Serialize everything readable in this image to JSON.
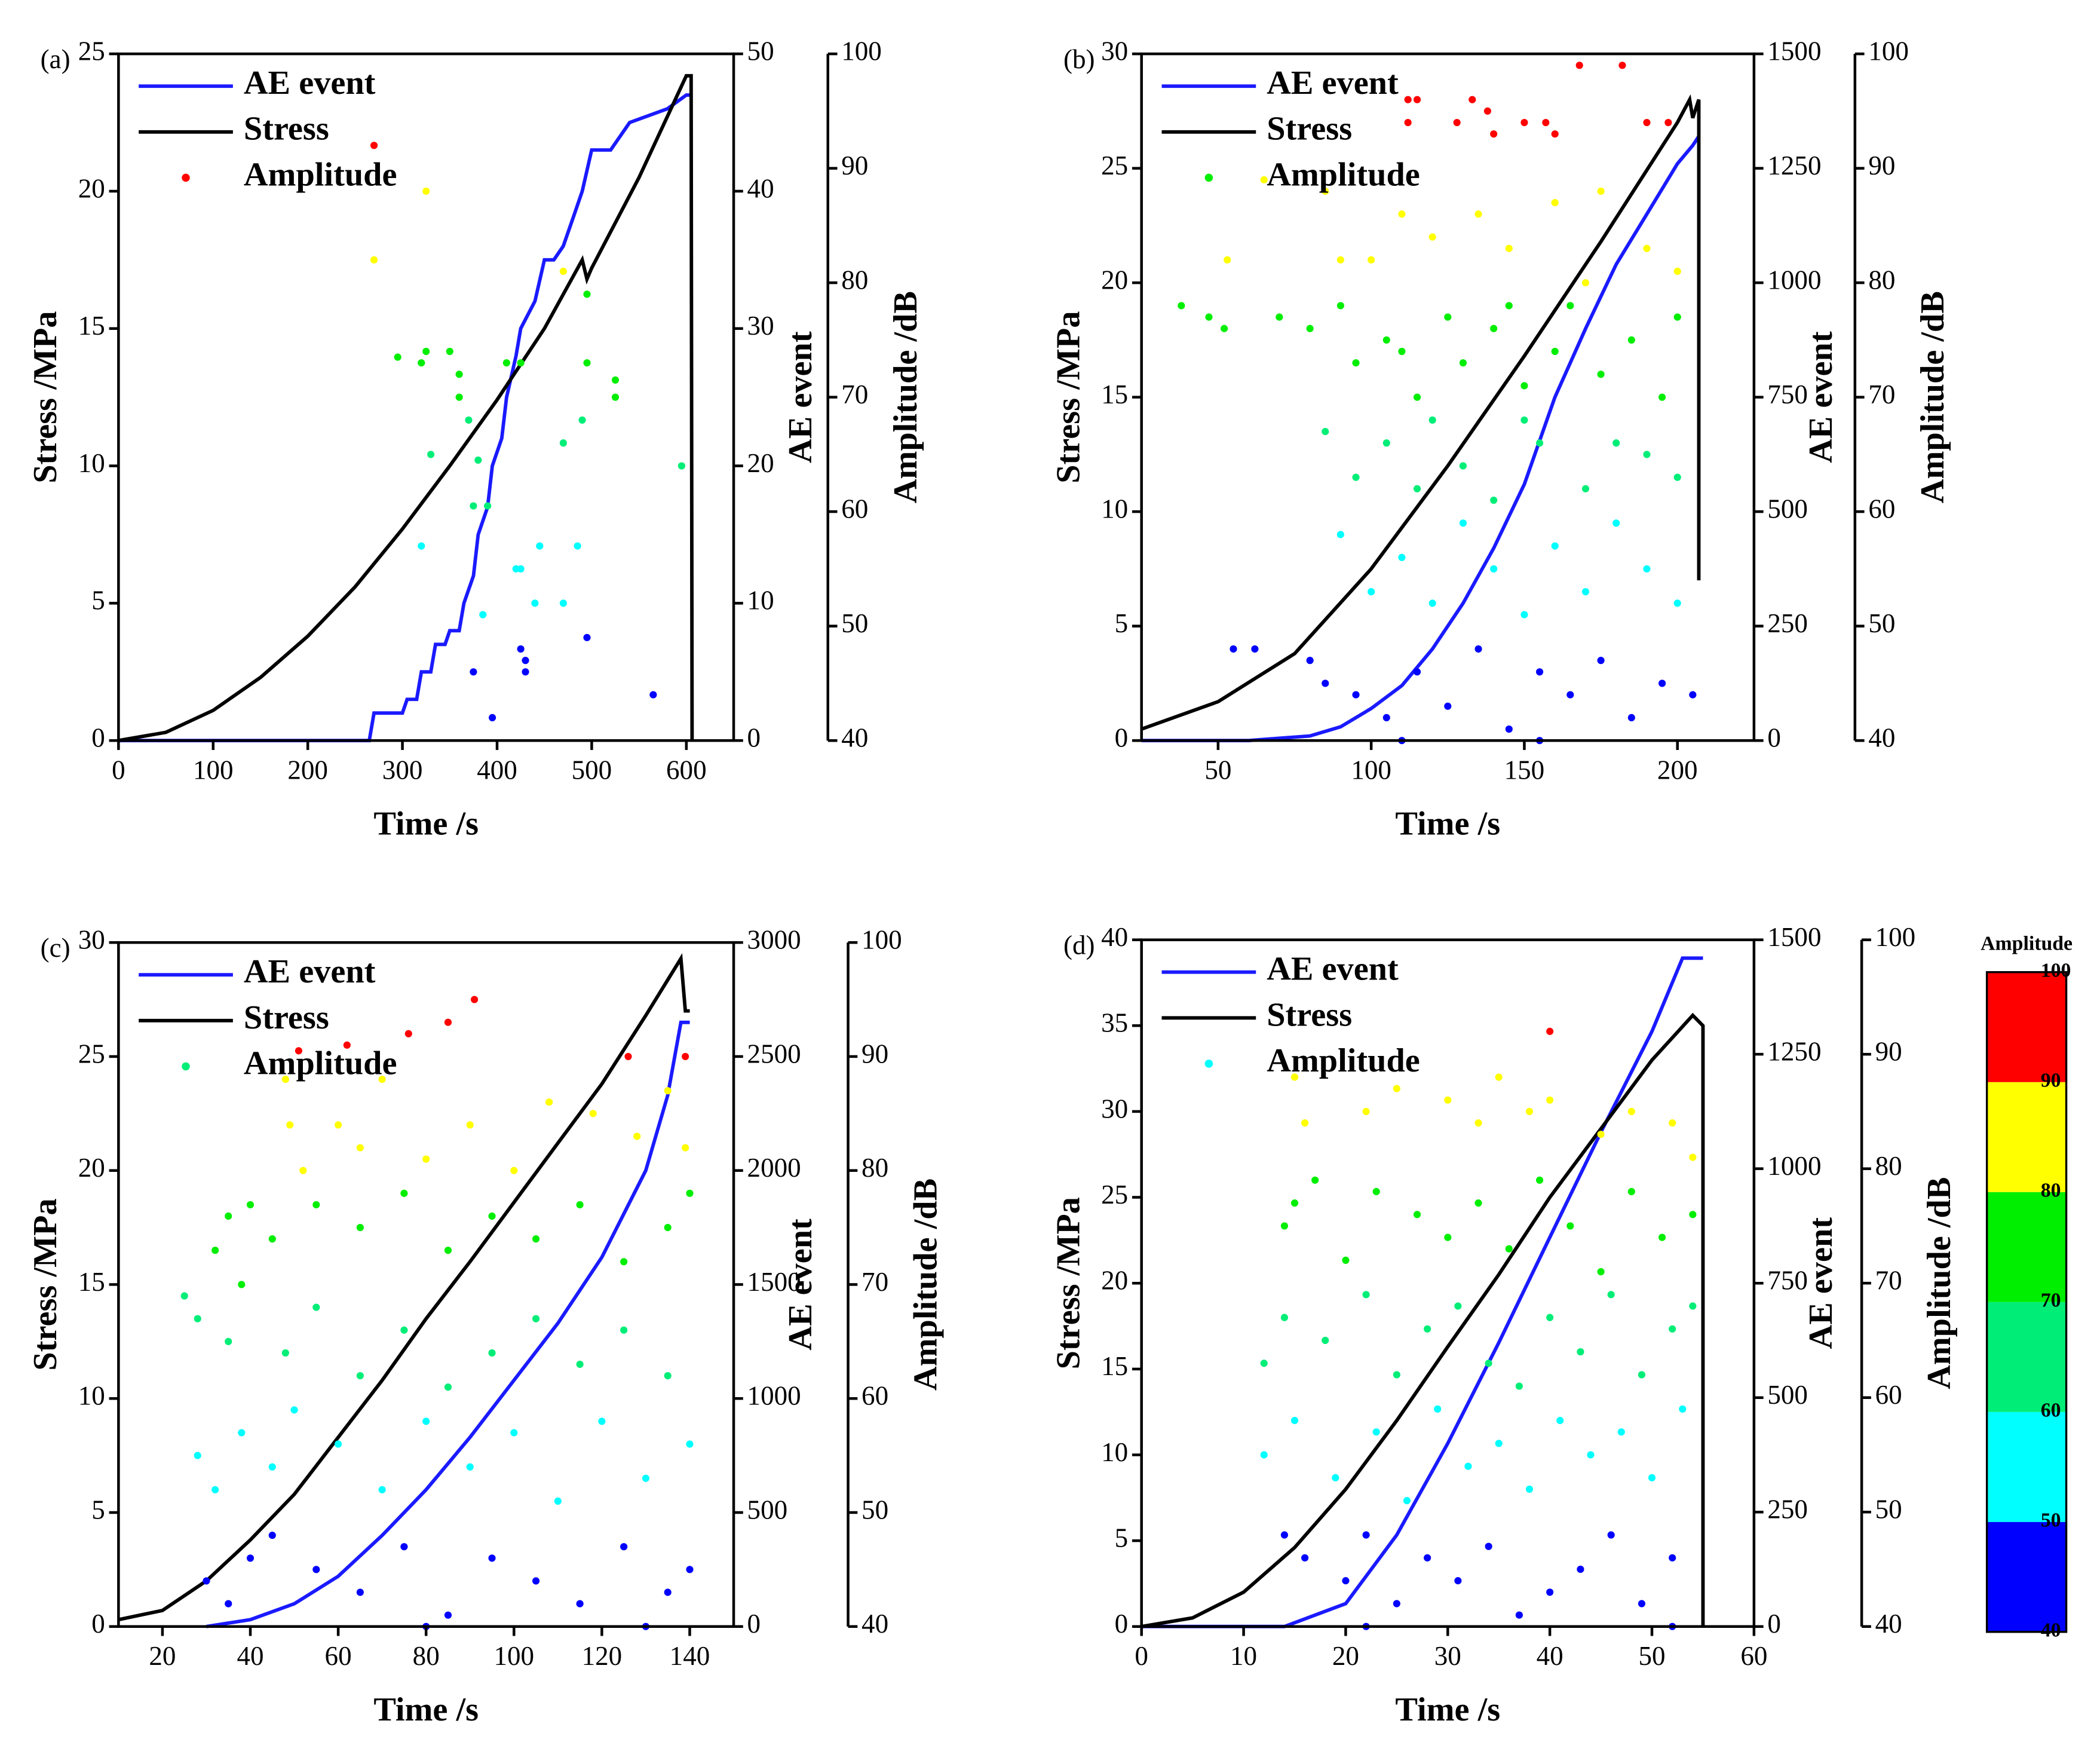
{
  "chart_data": [
    {
      "type": "line",
      "label": "(a)",
      "xlabel": "Time /s",
      "ylabel": "Stress /MPa",
      "y2label": "AE event",
      "y3label": "Amplitude /dB",
      "xlim": [
        0,
        650
      ],
      "xticks": [
        0,
        100,
        200,
        300,
        400,
        500,
        600
      ],
      "ylim": [
        0,
        25
      ],
      "yticks": [
        0,
        5,
        10,
        15,
        20,
        25
      ],
      "y2lim": [
        0,
        50
      ],
      "y2ticks": [
        0,
        10,
        20,
        30,
        40,
        50
      ],
      "y3lim": [
        40,
        100
      ],
      "y3ticks": [
        40,
        50,
        60,
        70,
        80,
        90,
        100
      ],
      "series": [
        {
          "name": "AE event",
          "color": "#1a1aff",
          "axis": "y2",
          "x": [
            0,
            265,
            270,
            300,
            305,
            315,
            320,
            330,
            335,
            345,
            350,
            360,
            365,
            375,
            380,
            390,
            395,
            405,
            410,
            420,
            425,
            440,
            450,
            460,
            470,
            480,
            490,
            500,
            520,
            540,
            580,
            600,
            605
          ],
          "values": [
            0,
            0,
            2,
            2,
            3,
            3,
            5,
            5,
            7,
            7,
            8,
            8,
            10,
            12,
            15,
            17,
            20,
            22,
            25,
            28,
            30,
            32,
            35,
            35,
            36,
            38,
            40,
            43,
            43,
            45,
            46,
            47,
            47
          ]
        },
        {
          "name": "Stress",
          "color": "#000000",
          "x": [
            0,
            50,
            100,
            150,
            200,
            250,
            300,
            350,
            400,
            450,
            490,
            495,
            500,
            550,
            600,
            605,
            606
          ],
          "values": [
            0,
            0.3,
            1.1,
            2.3,
            3.8,
            5.6,
            7.7,
            10,
            12.4,
            15,
            17.5,
            16.8,
            17.2,
            20.5,
            24.2,
            24.2,
            0
          ]
        },
        {
          "name": "Amplitude",
          "type": "scatter",
          "color": "#ff0000",
          "axis": "y3",
          "x": [
            270,
            325,
            270,
            470,
            495,
            295,
            320,
            325,
            350,
            360,
            360,
            370,
            410,
            425,
            495,
            525,
            525,
            330,
            380,
            390,
            470,
            595,
            490,
            320,
            375,
            420,
            425,
            445,
            485,
            440,
            470,
            385,
            375,
            425,
            430,
            430,
            495,
            395,
            565
          ],
          "values": [
            92,
            88,
            82,
            81,
            79,
            73.5,
            73,
            74,
            74,
            72,
            70,
            68,
            73,
            73,
            73,
            70,
            71.5,
            65,
            64.5,
            60.5,
            66,
            64,
            68,
            57,
            60.5,
            55,
            55,
            57,
            57,
            52,
            52,
            51,
            46,
            48,
            47,
            46,
            49,
            42,
            44
          ]
        }
      ]
    },
    {
      "type": "line",
      "label": "(b)",
      "xlabel": "Time /s",
      "ylabel": "Stress /MPa",
      "y2label": "AE event",
      "y3label": "Amplitude /dB",
      "xlim": [
        25,
        225
      ],
      "xticks": [
        50,
        100,
        150,
        200
      ],
      "ylim": [
        0,
        30
      ],
      "yticks": [
        0,
        5,
        10,
        15,
        20,
        25,
        30
      ],
      "y2lim": [
        0,
        1500
      ],
      "y2ticks": [
        0,
        250,
        500,
        750,
        1000,
        1250,
        1500
      ],
      "y3lim": [
        40,
        100
      ],
      "y3ticks": [
        40,
        50,
        60,
        70,
        80,
        90,
        100
      ],
      "series": [
        {
          "name": "AE event",
          "color": "#1a1aff",
          "axis": "y2",
          "x": [
            25,
            60,
            80,
            90,
            100,
            110,
            120,
            130,
            140,
            150,
            160,
            170,
            180,
            190,
            200,
            205,
            207
          ],
          "values": [
            0,
            0,
            10,
            30,
            70,
            120,
            200,
            300,
            420,
            560,
            750,
            900,
            1040,
            1150,
            1260,
            1300,
            1320
          ]
        },
        {
          "name": "Stress",
          "color": "#000000",
          "x": [
            25,
            50,
            75,
            100,
            125,
            150,
            175,
            200,
            204,
            205,
            207,
            207
          ],
          "values": [
            0.5,
            1.7,
            3.8,
            7.5,
            12,
            16.8,
            21.8,
            27,
            28,
            27.2,
            28,
            7
          ]
        },
        {
          "name": "Amplitude",
          "type": "scatter",
          "color": "#00ee00",
          "axis": "y3",
          "x": [
            112,
            115,
            128,
            133,
            138,
            140,
            150,
            157,
            160,
            168,
            182,
            190,
            197,
            112,
            38,
            47,
            52,
            70,
            53,
            65,
            85,
            90,
            110,
            120,
            135,
            145,
            160,
            175,
            190,
            200,
            100,
            170,
            80,
            90,
            95,
            105,
            115,
            125,
            130,
            140,
            150,
            160,
            165,
            175,
            185,
            195,
            200,
            110,
            145,
            120,
            155,
            180,
            85,
            95,
            105,
            115,
            130,
            140,
            150,
            170,
            190,
            200,
            90,
            100,
            110,
            120,
            130,
            140,
            150,
            160,
            170,
            180,
            190,
            200,
            80,
            85,
            95,
            105,
            115,
            125,
            135,
            145,
            155,
            165,
            175,
            185,
            195,
            205,
            55,
            62,
            110,
            155
          ],
          "values": [
            96,
            96,
            94,
            96,
            95,
            93,
            94,
            94,
            93,
            99,
            99,
            94,
            94,
            94,
            78,
            77,
            76,
            77,
            82,
            89,
            88,
            82,
            86,
            84,
            86,
            83,
            87,
            88,
            83,
            81,
            82,
            80,
            76,
            78,
            73,
            75,
            70,
            77,
            73,
            76,
            71,
            74,
            78,
            72,
            75,
            70,
            77,
            74,
            78,
            68,
            66,
            66,
            67,
            63,
            66,
            62,
            64,
            61,
            68,
            62,
            65,
            63,
            58,
            53,
            56,
            52,
            59,
            55,
            51,
            57,
            53,
            59,
            55,
            52,
            47,
            45,
            44,
            42,
            46,
            43,
            48,
            41,
            46,
            44,
            47,
            42,
            45,
            44,
            48,
            48,
            40,
            40
          ]
        }
      ]
    },
    {
      "type": "line",
      "label": "(c)",
      "xlabel": "Time /s",
      "ylabel": "Stress /MPa",
      "y2label": "AE event",
      "y3label": "Amplitude /dB",
      "xlim": [
        10,
        150
      ],
      "xticks": [
        20,
        40,
        60,
        80,
        100,
        120,
        140
      ],
      "ylim": [
        0,
        30
      ],
      "yticks": [
        0,
        5,
        10,
        15,
        20,
        25,
        30
      ],
      "y2lim": [
        0,
        3000
      ],
      "y2ticks": [
        0,
        500,
        1000,
        1500,
        2000,
        2500,
        3000
      ],
      "y3lim": [
        40,
        100
      ],
      "y3ticks": [
        40,
        50,
        60,
        70,
        80,
        90,
        100
      ],
      "series": [
        {
          "name": "AE event",
          "color": "#1a1aff",
          "axis": "y2",
          "x": [
            30,
            40,
            50,
            60,
            70,
            80,
            90,
            100,
            110,
            120,
            130,
            135,
            138,
            140
          ],
          "values": [
            0,
            30,
            100,
            220,
            400,
            600,
            830,
            1080,
            1330,
            1620,
            2000,
            2330,
            2650,
            2650
          ]
        },
        {
          "name": "Stress",
          "color": "#000000",
          "x": [
            10,
            20,
            30,
            40,
            50,
            60,
            70,
            80,
            90,
            100,
            110,
            120,
            130,
            138,
            139,
            140
          ],
          "values": [
            0.3,
            0.7,
            2,
            3.8,
            5.8,
            8.3,
            10.8,
            13.5,
            16,
            18.6,
            21.2,
            23.8,
            26.8,
            29.3,
            27,
            27
          ]
        },
        {
          "name": "Amplitude",
          "type": "scatter",
          "color": "#00ee77",
          "axis": "y3",
          "x": [
            51,
            62,
            76,
            85,
            91,
            126,
            139,
            48,
            49,
            52,
            60,
            65,
            70,
            80,
            90,
            100,
            108,
            118,
            128,
            135,
            139,
            25,
            32,
            35,
            40,
            45,
            55,
            65,
            75,
            85,
            95,
            105,
            115,
            125,
            135,
            140,
            38,
            28,
            35,
            48,
            55,
            65,
            75,
            85,
            95,
            105,
            115,
            125,
            135,
            28,
            32,
            38,
            45,
            50,
            60,
            70,
            80,
            90,
            100,
            110,
            120,
            130,
            140,
            30,
            35,
            40,
            45,
            55,
            65,
            75,
            85,
            95,
            105,
            115,
            125,
            135,
            140,
            80,
            130
          ],
          "values": [
            90.5,
            91,
            92,
            93,
            95,
            90,
            90,
            88,
            84,
            80,
            84,
            82,
            88,
            81,
            84,
            80,
            86,
            85,
            83,
            87,
            82,
            69,
            73,
            76,
            77,
            74,
            77,
            75,
            78,
            73,
            76,
            74,
            77,
            72,
            75,
            78,
            70,
            67,
            65,
            64,
            68,
            62,
            66,
            61,
            64,
            67,
            63,
            66,
            62,
            55,
            52,
            57,
            54,
            59,
            56,
            52,
            58,
            54,
            57,
            51,
            58,
            53,
            56,
            44,
            42,
            46,
            48,
            45,
            43,
            47,
            41,
            46,
            44,
            42,
            47,
            43,
            45,
            40,
            40
          ]
        }
      ]
    },
    {
      "type": "line",
      "label": "(d)",
      "xlabel": "Time /s",
      "ylabel": "Stress /MPa",
      "y2label": "AE event",
      "y3label": "Amplitude /dB",
      "xlim": [
        0,
        60
      ],
      "xticks": [
        0,
        10,
        20,
        30,
        40,
        50,
        60
      ],
      "ylim": [
        0,
        40
      ],
      "yticks": [
        0,
        5,
        10,
        15,
        20,
        25,
        30,
        35,
        40
      ],
      "y2lim": [
        0,
        1500
      ],
      "y2ticks": [
        0,
        250,
        500,
        750,
        1000,
        1250,
        1500
      ],
      "y3lim": [
        40,
        100
      ],
      "y3ticks": [
        40,
        50,
        60,
        70,
        80,
        90,
        100
      ],
      "series": [
        {
          "name": "AE event",
          "color": "#1a1aff",
          "axis": "y2",
          "x": [
            0,
            14,
            20,
            25,
            30,
            35,
            40,
            45,
            50,
            53,
            55
          ],
          "values": [
            0,
            0,
            50,
            200,
            400,
            620,
            850,
            1080,
            1300,
            1460,
            1460
          ]
        },
        {
          "name": "Stress",
          "color": "#000000",
          "x": [
            0,
            5,
            10,
            15,
            20,
            25,
            30,
            35,
            40,
            45,
            50,
            54,
            55,
            55
          ],
          "values": [
            0,
            0.5,
            2,
            4.6,
            8,
            12,
            16.3,
            20.5,
            25,
            29,
            33,
            35.6,
            35,
            0
          ]
        },
        {
          "name": "Amplitude",
          "type": "scatter",
          "color": "#00ffff",
          "axis": "y3",
          "x": [
            40,
            15,
            16,
            22,
            25,
            30,
            33,
            35,
            38,
            40,
            45,
            48,
            52,
            54,
            14,
            15,
            17,
            20,
            23,
            27,
            30,
            33,
            36,
            39,
            42,
            45,
            48,
            51,
            54,
            12,
            14,
            18,
            22,
            25,
            28,
            31,
            34,
            37,
            40,
            43,
            46,
            49,
            52,
            54,
            12,
            15,
            19,
            23,
            26,
            29,
            32,
            35,
            38,
            41,
            44,
            47,
            50,
            53,
            14,
            16,
            20,
            22,
            25,
            28,
            31,
            34,
            37,
            40,
            43,
            46,
            49,
            52,
            22,
            52
          ],
          "values": [
            92,
            88,
            84,
            85,
            87,
            86,
            84,
            88,
            85,
            86,
            83,
            85,
            84,
            81,
            75,
            77,
            79,
            72,
            78,
            76,
            74,
            77,
            73,
            79,
            75,
            71,
            78,
            74,
            76,
            63,
            67,
            65,
            69,
            62,
            66,
            68,
            63,
            61,
            67,
            64,
            69,
            62,
            66,
            68,
            55,
            58,
            53,
            57,
            51,
            59,
            54,
            56,
            52,
            58,
            55,
            57,
            53,
            59,
            48,
            46,
            44,
            48,
            42,
            46,
            44,
            47,
            41,
            43,
            45,
            48,
            42,
            46,
            40,
            40
          ]
        }
      ],
      "colorbar": {
        "title": "Amplitude",
        "ticks": [
          40,
          50,
          60,
          70,
          80,
          90,
          100
        ],
        "colors": [
          "#0000ff",
          "#00ffff",
          "#00ee77",
          "#00ee00",
          "#ffff00",
          "#ff0000"
        ]
      }
    }
  ]
}
